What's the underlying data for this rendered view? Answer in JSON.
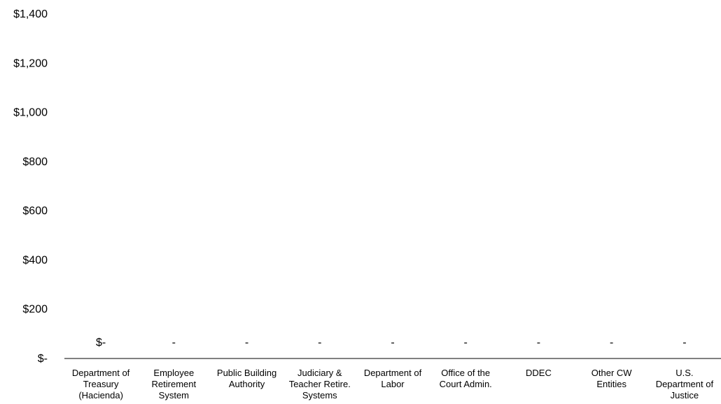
{
  "chart_data": {
    "type": "bar",
    "title": "",
    "xlabel": "",
    "ylabel": "",
    "ylim": [
      0,
      1400
    ],
    "grid": false,
    "legend": "none",
    "y_ticks": [
      {
        "value": 0,
        "label": "$-"
      },
      {
        "value": 200,
        "label": "$200"
      },
      {
        "value": 400,
        "label": "$400"
      },
      {
        "value": 600,
        "label": "$600"
      },
      {
        "value": 800,
        "label": "$800"
      },
      {
        "value": 1000,
        "label": "$1,000"
      },
      {
        "value": 1200,
        "label": "$1,200"
      },
      {
        "value": 1400,
        "label": "$1,400"
      }
    ],
    "categories": [
      "Department of Treasury (Hacienda)",
      "Employee Retirement System",
      "Public Building Authority",
      "Judiciary & Teacher Retire. Systems",
      "Department of Labor",
      "Office of the Court Admin.",
      "DDEC",
      "Other CW Entities",
      "U.S. Department of Justice"
    ],
    "category_lines": [
      [
        "Department of",
        "Treasury",
        "(Hacienda)"
      ],
      [
        "Employee",
        "Retirement",
        "System"
      ],
      [
        "Public Building",
        "Authority"
      ],
      [
        "Judiciary &",
        "Teacher Retire.",
        "Systems"
      ],
      [
        "Department of",
        "Labor"
      ],
      [
        "Office of the",
        "Court Admin."
      ],
      [
        "DDEC"
      ],
      [
        "Other CW",
        "Entities"
      ],
      [
        "U.S.",
        "Department of",
        "Justice"
      ]
    ],
    "values": [
      0,
      0,
      0,
      0,
      0,
      0,
      0,
      0,
      0
    ],
    "data_labels": [
      "$-",
      "-",
      "-",
      "-",
      "-",
      "-",
      "-",
      "-",
      "-"
    ],
    "colors": {
      "axis": "#000000",
      "bar": "#1f3864",
      "text": "#000000"
    }
  }
}
